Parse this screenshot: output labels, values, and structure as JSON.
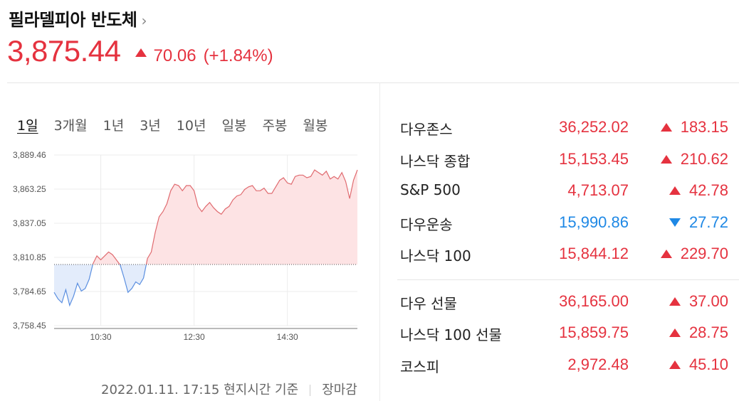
{
  "header": {
    "title": "필라델피아 반도체",
    "chevron": "›",
    "price": "3,875.44",
    "change": "70.06",
    "change_pct": "(+1.84%)",
    "direction": "up"
  },
  "tabs": [
    "1일",
    "3개월",
    "1년",
    "3년",
    "10년",
    "일봉",
    "주봉",
    "월봉"
  ],
  "active_tab": "1일",
  "footer": {
    "timestamp": "2022.01.11. 17:15 현지시간 기준",
    "status": "장마감"
  },
  "colors": {
    "up": "#e5323f",
    "down": "#1e88e5",
    "up_fill": "#fde3e4",
    "down_fill": "#e3ecfb"
  },
  "chart_data": {
    "type": "area",
    "y_ticks": [
      "3,889.46",
      "3,863.25",
      "3,837.05",
      "3,810.85",
      "3,784.65",
      "3,758.45"
    ],
    "ylim": [
      3758.45,
      3889.46
    ],
    "x_ticks": [
      "10:30",
      "12:30",
      "14:30"
    ],
    "baseline": 3805.38,
    "grid": true,
    "series": [
      {
        "x": [
          "09:30",
          "09:35",
          "09:40",
          "09:45",
          "09:50",
          "09:55",
          "10:00",
          "10:05",
          "10:10",
          "10:15",
          "10:20",
          "10:25",
          "10:30",
          "10:35",
          "10:40",
          "10:45",
          "10:50",
          "10:55",
          "11:00",
          "11:05",
          "11:10",
          "11:15",
          "11:20",
          "11:25",
          "11:30",
          "11:35",
          "11:40",
          "11:45",
          "11:50",
          "11:55",
          "12:00",
          "12:05",
          "12:10",
          "12:15",
          "12:20",
          "12:25",
          "12:30",
          "12:35",
          "12:40",
          "12:45",
          "12:50",
          "12:55",
          "13:00",
          "13:05",
          "13:10",
          "13:15",
          "13:20",
          "13:25",
          "13:30",
          "13:35",
          "13:40",
          "13:45",
          "13:50",
          "13:55",
          "14:00",
          "14:05",
          "14:10",
          "14:15",
          "14:20",
          "14:25",
          "14:30",
          "14:35",
          "14:40",
          "14:45",
          "14:50",
          "14:55",
          "15:00",
          "15:05",
          "15:10",
          "15:15",
          "15:20",
          "15:25",
          "15:30",
          "15:35",
          "15:40",
          "15:45",
          "15:50",
          "15:55",
          "16:00"
        ],
        "values": [
          3784,
          3779,
          3776,
          3786,
          3774,
          3781,
          3791,
          3785,
          3787,
          3794,
          3806,
          3812,
          3809,
          3812,
          3815,
          3813,
          3809,
          3805,
          3795,
          3784,
          3787,
          3792,
          3790,
          3795,
          3810,
          3815,
          3830,
          3842,
          3846,
          3852,
          3862,
          3867,
          3866,
          3862,
          3866,
          3866,
          3862,
          3850,
          3846,
          3850,
          3853,
          3849,
          3846,
          3844,
          3848,
          3850,
          3855,
          3858,
          3859,
          3863,
          3865,
          3866,
          3862,
          3862,
          3864,
          3860,
          3860,
          3865,
          3870,
          3872,
          3868,
          3867,
          3873,
          3874,
          3874,
          3872,
          3873,
          3878,
          3876,
          3874,
          3877,
          3871,
          3873,
          3871,
          3876,
          3869,
          3856,
          3870,
          3878
        ]
      }
    ]
  },
  "indices": [
    {
      "name": "다우존스",
      "value": "36,252.02",
      "change": "183.15",
      "direction": "up"
    },
    {
      "name": "나스닥 종합",
      "value": "15,153.45",
      "change": "210.62",
      "direction": "up"
    },
    {
      "name": "S&P 500",
      "value": "4,713.07",
      "change": "42.78",
      "direction": "up"
    },
    {
      "name": "다우운송",
      "value": "15,990.86",
      "change": "27.72",
      "direction": "down"
    },
    {
      "name": "나스닥 100",
      "value": "15,844.12",
      "change": "229.70",
      "direction": "up"
    },
    {
      "name": "다우 선물",
      "value": "36,165.00",
      "change": "37.00",
      "direction": "up"
    },
    {
      "name": "나스닥 100 선물",
      "value": "15,859.75",
      "change": "28.75",
      "direction": "up"
    },
    {
      "name": "코스피",
      "value": "2,972.48",
      "change": "45.10",
      "direction": "up"
    }
  ]
}
